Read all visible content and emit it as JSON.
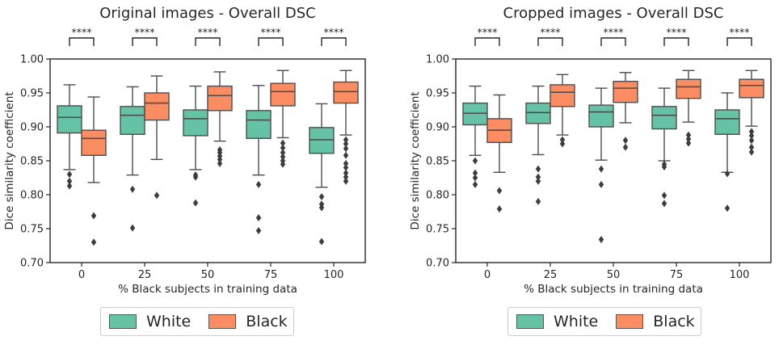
{
  "colors": {
    "white": "#66c2a5",
    "black": "#fc8d62",
    "edge": "#4d4d4d",
    "outlier": "#3d3d3d"
  },
  "chart_data": [
    {
      "type": "box",
      "title": "Original images - Overall DSC",
      "xlabel": "% Black subjects in training data",
      "ylabel": "Dice similarity coefficient",
      "categories": [
        "0",
        "25",
        "50",
        "75",
        "100"
      ],
      "ylim": [
        0.7,
        1.0
      ],
      "yticks": [
        "0.70",
        "0.75",
        "0.80",
        "0.85",
        "0.90",
        "0.95",
        "1.00"
      ],
      "significance": [
        "****",
        "****",
        "****",
        "****",
        "****"
      ],
      "series": [
        {
          "name": "White",
          "boxes": [
            {
              "wlo": 0.837,
              "q1": 0.891,
              "med": 0.914,
              "q3": 0.931,
              "whi": 0.962,
              "outliers": [
                0.83,
                0.82,
                0.813
              ]
            },
            {
              "wlo": 0.829,
              "q1": 0.889,
              "med": 0.917,
              "q3": 0.93,
              "whi": 0.959,
              "outliers": [
                0.808,
                0.751
              ]
            },
            {
              "wlo": 0.837,
              "q1": 0.887,
              "med": 0.912,
              "q3": 0.925,
              "whi": 0.96,
              "outliers": [
                0.829,
                0.826,
                0.788
              ]
            },
            {
              "wlo": 0.829,
              "q1": 0.883,
              "med": 0.91,
              "q3": 0.924,
              "whi": 0.961,
              "outliers": [
                0.815,
                0.766,
                0.747
              ]
            },
            {
              "wlo": 0.811,
              "q1": 0.861,
              "med": 0.881,
              "q3": 0.899,
              "whi": 0.934,
              "outliers": [
                0.797,
                0.786,
                0.781,
                0.731
              ]
            }
          ]
        },
        {
          "name": "Black",
          "boxes": [
            {
              "wlo": 0.818,
              "q1": 0.858,
              "med": 0.883,
              "q3": 0.895,
              "whi": 0.944,
              "outliers": [
                0.769,
                0.73
              ]
            },
            {
              "wlo": 0.852,
              "q1": 0.91,
              "med": 0.935,
              "q3": 0.95,
              "whi": 0.975,
              "outliers": [
                0.799
              ]
            },
            {
              "wlo": 0.879,
              "q1": 0.924,
              "med": 0.946,
              "q3": 0.96,
              "whi": 0.981,
              "outliers": [
                0.866,
                0.862,
                0.857,
                0.852,
                0.846
              ]
            },
            {
              "wlo": 0.884,
              "q1": 0.931,
              "med": 0.952,
              "q3": 0.964,
              "whi": 0.983,
              "outliers": [
                0.876,
                0.869,
                0.862,
                0.856,
                0.85,
                0.845
              ]
            },
            {
              "wlo": 0.888,
              "q1": 0.935,
              "med": 0.952,
              "q3": 0.966,
              "whi": 0.983,
              "outliers": [
                0.881,
                0.875,
                0.868,
                0.858,
                0.846,
                0.84,
                0.832,
                0.826,
                0.82
              ]
            }
          ]
        }
      ]
    },
    {
      "type": "box",
      "title": "Cropped images - Overall DSC",
      "xlabel": "% Black subjects in training data",
      "ylabel": "Dice similarity coefficient",
      "categories": [
        "0",
        "25",
        "50",
        "75",
        "100"
      ],
      "ylim": [
        0.7,
        1.0
      ],
      "yticks": [
        "0.70",
        "0.75",
        "0.80",
        "0.85",
        "0.90",
        "0.95",
        "1.00"
      ],
      "significance": [
        "****",
        "****",
        "****",
        "****",
        "****"
      ],
      "series": [
        {
          "name": "White",
          "boxes": [
            {
              "wlo": 0.858,
              "q1": 0.903,
              "med": 0.92,
              "q3": 0.935,
              "whi": 0.96,
              "outliers": [
                0.85,
                0.832,
                0.825,
                0.815
              ]
            },
            {
              "wlo": 0.859,
              "q1": 0.905,
              "med": 0.921,
              "q3": 0.935,
              "whi": 0.96,
              "outliers": [
                0.838,
                0.826,
                0.82,
                0.79
              ]
            },
            {
              "wlo": 0.851,
              "q1": 0.9,
              "med": 0.922,
              "q3": 0.932,
              "whi": 0.957,
              "outliers": [
                0.838,
                0.815,
                0.734
              ]
            },
            {
              "wlo": 0.85,
              "q1": 0.897,
              "med": 0.917,
              "q3": 0.93,
              "whi": 0.957,
              "outliers": [
                0.845,
                0.841,
                0.799,
                0.787
              ]
            },
            {
              "wlo": 0.833,
              "q1": 0.889,
              "med": 0.912,
              "q3": 0.925,
              "whi": 0.95,
              "outliers": [
                0.831,
                0.78
              ]
            }
          ]
        },
        {
          "name": "Black",
          "boxes": [
            {
              "wlo": 0.833,
              "q1": 0.877,
              "med": 0.895,
              "q3": 0.912,
              "whi": 0.947,
              "outliers": [
                0.806,
                0.779
              ]
            },
            {
              "wlo": 0.888,
              "q1": 0.93,
              "med": 0.951,
              "q3": 0.962,
              "whi": 0.977,
              "outliers": [
                0.881,
                0.875
              ]
            },
            {
              "wlo": 0.906,
              "q1": 0.936,
              "med": 0.957,
              "q3": 0.967,
              "whi": 0.98,
              "outliers": [
                0.88,
                0.87
              ]
            },
            {
              "wlo": 0.907,
              "q1": 0.942,
              "med": 0.959,
              "q3": 0.97,
              "whi": 0.983,
              "outliers": [
                0.888,
                0.882,
                0.876
              ]
            },
            {
              "wlo": 0.901,
              "q1": 0.943,
              "med": 0.961,
              "q3": 0.97,
              "whi": 0.983,
              "outliers": [
                0.893,
                0.887,
                0.88,
                0.87,
                0.863
              ]
            }
          ]
        }
      ]
    }
  ],
  "legend": {
    "items": [
      {
        "label": "White"
      },
      {
        "label": "Black"
      }
    ]
  }
}
